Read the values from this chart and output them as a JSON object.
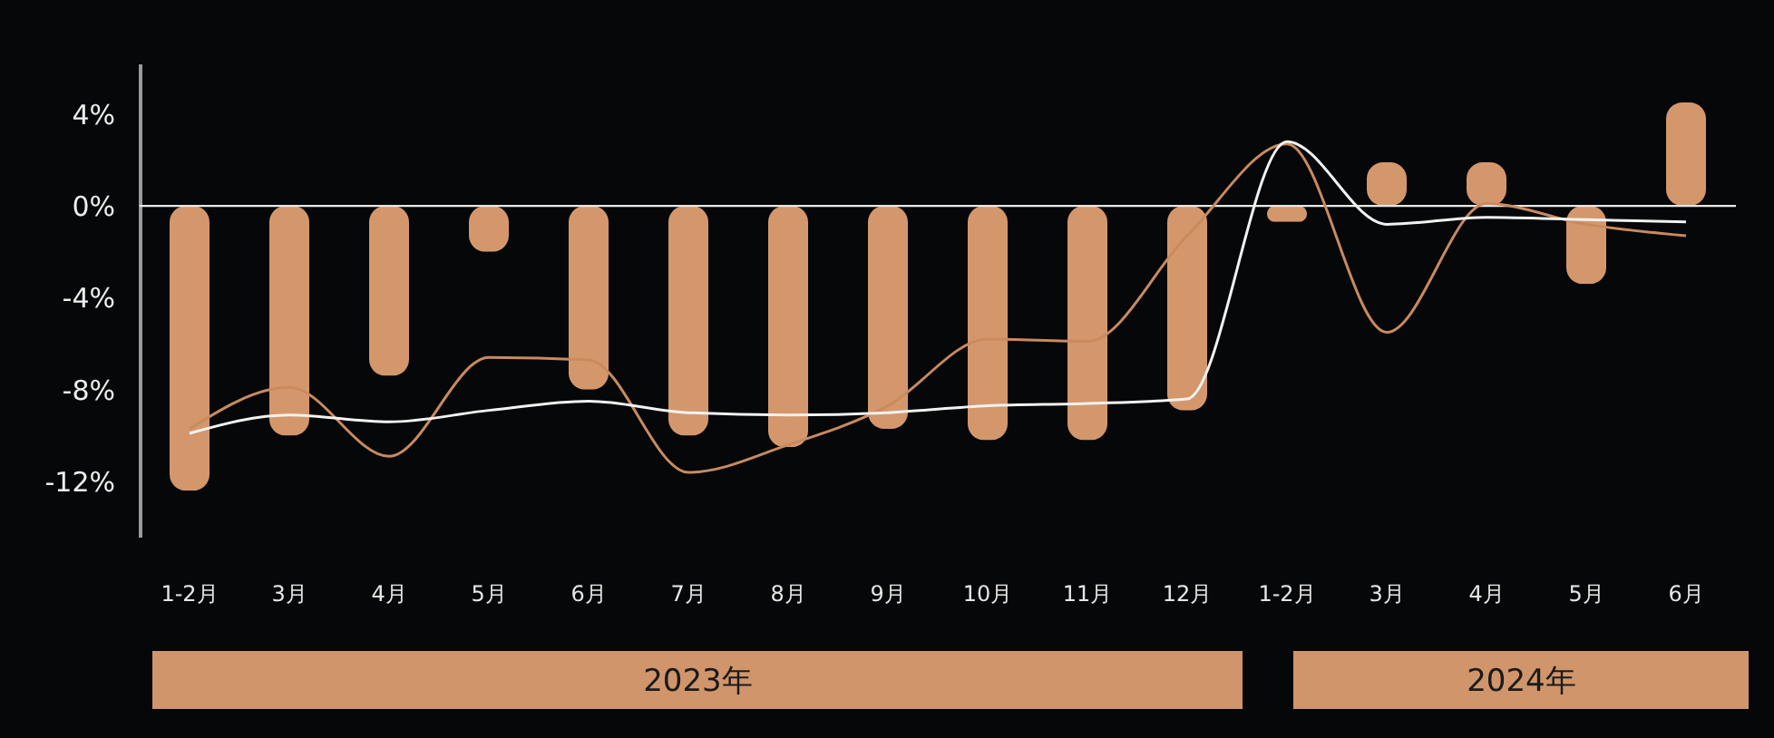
{
  "chart_data": {
    "type": "bar",
    "categories": [
      "1-2月",
      "3月",
      "4月",
      "5月",
      "6月",
      "7月",
      "8月",
      "9月",
      "10月",
      "11月",
      "12月",
      "1-2月",
      "3月",
      "4月",
      "5月",
      "6月"
    ],
    "series": [
      {
        "color": "#d4976c",
        "values": [
          -12.4,
          -10.0,
          -7.4,
          -2.0,
          -8.0,
          -10.0,
          -10.5,
          -9.7,
          -10.2,
          -10.2,
          -8.9,
          -0.7,
          1.9,
          1.9,
          -3.4,
          4.5
        ]
      },
      {
        "type": "line",
        "color": "#c98a5e",
        "values": [
          -9.7,
          -7.9,
          -10.9,
          -6.6,
          -6.7,
          -11.6,
          -10.4,
          -8.7,
          -5.8,
          -5.9,
          -1.3,
          2.7,
          -5.5,
          0.1,
          -0.8,
          -1.3
        ]
      },
      {
        "type": "line",
        "color": "#f2f2f2",
        "values": [
          -9.9,
          -9.1,
          -9.4,
          -8.9,
          -8.5,
          -9.0,
          -9.1,
          -9.0,
          -8.7,
          -8.6,
          -8.4,
          2.8,
          -0.8,
          -0.5,
          -0.6,
          -0.7
        ]
      }
    ],
    "ylim": [
      -14.4,
      6.2
    ],
    "yticks": [
      {
        "value": 4,
        "label": "4%"
      },
      {
        "value": 0,
        "label": "0%"
      },
      {
        "value": -4,
        "label": "-4%"
      },
      {
        "value": -8,
        "label": "-8%"
      },
      {
        "value": -12,
        "label": "-12%"
      }
    ],
    "ref_lines": [
      {
        "axis": "y",
        "value": 0,
        "color": "#e8e8e8"
      }
    ],
    "marker": "none",
    "line_style": "solid",
    "annotations": [
      "2023年",
      "2024年"
    ]
  }
}
